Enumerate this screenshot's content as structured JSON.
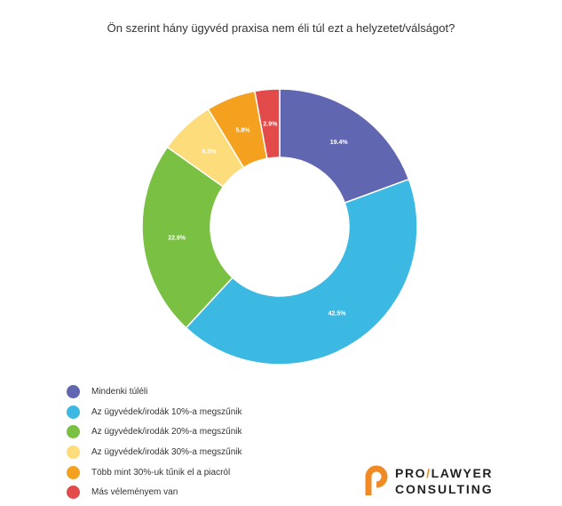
{
  "chart_data": {
    "type": "pie",
    "title": "Ön szerint hány ügyvéd praxisa nem éli túl ezt a helyzetet/válságot?",
    "legend_position": "bottom-left",
    "donut": true,
    "series": [
      {
        "name": "Mindenki túléli",
        "value": 19.4,
        "label": "19.4%",
        "color": "#6166b1"
      },
      {
        "name": "Az ügyvédek/irodák 10%-a megszűnik",
        "value": 42.5,
        "label": "42.5%",
        "color": "#3cb9e3"
      },
      {
        "name": "Az ügyvédek/irodák 20%-a megszűnik",
        "value": 22.9,
        "label": "22.9%",
        "color": "#79c043"
      },
      {
        "name": "Az ügyvédek/irodák 30%-a megszűnik",
        "value": 6.5,
        "label": "6.5%",
        "color": "#fcdc7b"
      },
      {
        "name": "Több mint 30%-uk tűnik el a piacról",
        "value": 5.8,
        "label": "5.8%",
        "color": "#f3a11f"
      },
      {
        "name": "Más véleményem van",
        "value": 2.9,
        "label": "2.9%",
        "color": "#e34b4b"
      }
    ]
  },
  "logo": {
    "line1_a": "PRO",
    "line1_slash": "/",
    "line1_b": "LAWYER",
    "line2": "CONSULTING",
    "accent_color": "#f08a24"
  }
}
